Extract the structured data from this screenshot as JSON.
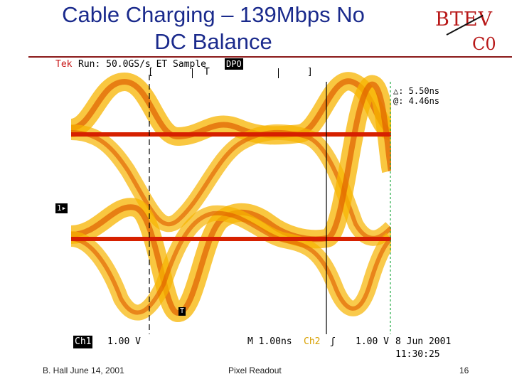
{
  "slide": {
    "title_line1": "Cable Charging – 139Mbps No",
    "title_line2": "DC Balance",
    "logo_top": "BTEV",
    "logo_bottom": "C0"
  },
  "scope": {
    "brand": "Tek",
    "run_status": "Run: 50.0GS/s ET Sample",
    "mode_badge": "DPO",
    "bracket_left": "[",
    "trigger_marker": "T",
    "bracket_right": "]",
    "delta_readout": "△: 5.50ns",
    "at_readout": "@: 4.46ns",
    "channel_marker": "1▸",
    "trigger_level_marker": "T",
    "ch1_label": "Ch1",
    "ch1_scale": "1.00 V",
    "timebase": "M 1.00ns",
    "ch2_label": "Ch2",
    "ch2_trigger_symbol": "ʃ",
    "ch2_scale": "1.00 V",
    "date": "8 Jun 2001",
    "time": "11:30:25"
  },
  "footer": {
    "author_date": "B. Hall  June 14, 2001",
    "section": "Pixel Readout",
    "page": "16"
  },
  "colors": {
    "title": "#1a2a8c",
    "rule": "#8b1a1a",
    "logo": "#b81818",
    "trace_outer": "#f7b400",
    "trace_inner": "#e06000",
    "baseline": "#d62000",
    "cursor_green": "#22aa44"
  }
}
